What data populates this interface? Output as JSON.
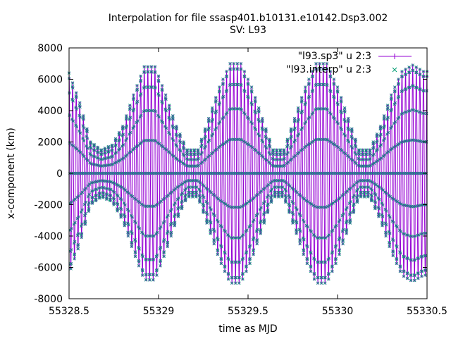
{
  "chart_data": {
    "type": "line",
    "title": "Interpolation for file ssasp401.b10131.e10142.Dsp3.002",
    "subtitle": "SV: L93",
    "xlabel": "time as MJD",
    "ylabel": "x-component (km)",
    "xlim": [
      55328.5,
      55330.5
    ],
    "ylim": [
      -8000,
      8000
    ],
    "x_ticks": [
      55328.5,
      55329,
      55329.5,
      55330,
      55330.5
    ],
    "x_tick_labels": [
      "55328.5",
      "55329",
      "55329.5",
      "55330",
      "55330.5"
    ],
    "y_ticks": [
      -8000,
      -6000,
      -4000,
      -2000,
      0,
      2000,
      4000,
      6000,
      8000
    ],
    "y_tick_labels": [
      "-8000",
      "-6000",
      "-4000",
      "-2000",
      "0",
      "2000",
      "4000",
      "6000",
      "8000"
    ],
    "grid": false,
    "legend_position": "top-right",
    "series": [
      {
        "name": "\"l93.sp3\" u 2:3",
        "color": "#9400d3",
        "marker": "plus",
        "envelope": {
          "x": [
            55328.5,
            55328.56,
            55328.62,
            55328.68,
            55328.74,
            55328.8,
            55328.86,
            55328.92,
            55328.98,
            55329.04,
            55329.1,
            55329.16,
            55329.22,
            55329.28,
            55329.34,
            55329.4,
            55329.46,
            55329.52,
            55329.58,
            55329.64,
            55329.7,
            55329.76,
            55329.82,
            55329.88,
            55329.94,
            55330.0,
            55330.06,
            55330.12,
            55330.18,
            55330.24,
            55330.3,
            55330.36,
            55330.42,
            55330.48
          ],
          "amplitude": [
            6400,
            4500,
            2000,
            1500,
            1800,
            3000,
            5000,
            6800,
            6800,
            5000,
            3000,
            1500,
            1500,
            3500,
            5500,
            7000,
            7000,
            5500,
            3500,
            1500,
            1500,
            3500,
            5500,
            7000,
            7000,
            5500,
            3500,
            1500,
            1500,
            3000,
            5000,
            6500,
            6900,
            6500
          ]
        },
        "oscillation_period_days": 0.02
      },
      {
        "name": "\"l93.interp\" u 2:3",
        "color": "#009e73",
        "marker": "x",
        "same_as_series": 0
      }
    ]
  }
}
